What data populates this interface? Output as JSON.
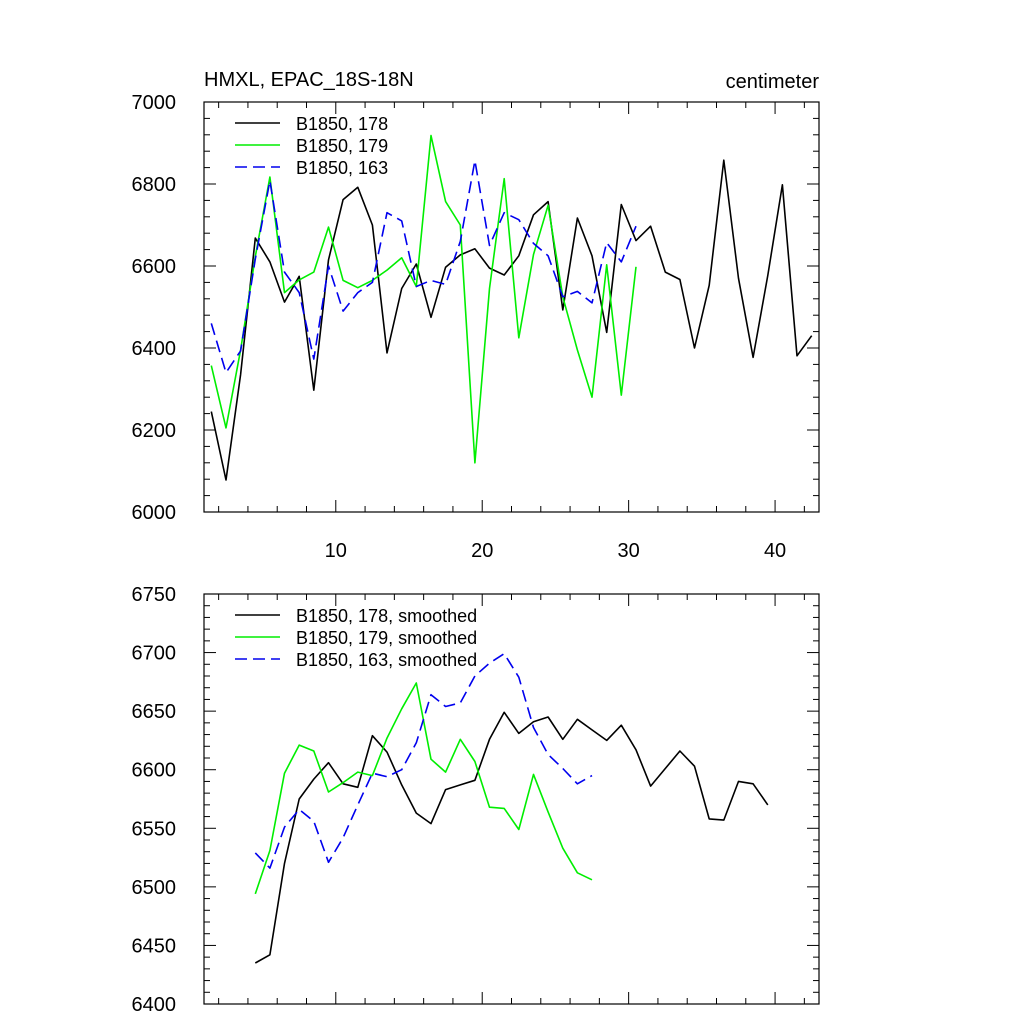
{
  "chart_data": [
    {
      "type": "line",
      "title": "HMXL, EPAC_18S-18N",
      "units": "centimeter",
      "xlabel": "",
      "ylabel": "",
      "xlim": [
        1,
        43
      ],
      "ylim": [
        6000,
        7000
      ],
      "grid": false,
      "legend_position": "top-left",
      "x_ticks": [
        10,
        20,
        30,
        40
      ],
      "y_ticks": [
        6000,
        6200,
        6400,
        6600,
        6800,
        7000
      ],
      "series": [
        {
          "name": "B1850, 178",
          "color": "#000000",
          "dash": "solid",
          "x": [
            1.5,
            2.5,
            3.5,
            4.5,
            5.5,
            6.5,
            7.5,
            8.5,
            9.5,
            10.5,
            11.5,
            12.5,
            13.5,
            14.5,
            15.5,
            16.5,
            17.5,
            18.5,
            19.5,
            20.5,
            21.5,
            22.5,
            23.5,
            24.5,
            25.5,
            26.5,
            27.5,
            28.5,
            29.5,
            30.5,
            31.5,
            32.5,
            33.5,
            34.5,
            35.5,
            36.5,
            37.5,
            38.5,
            39.5,
            40.5,
            41.5,
            42.5
          ],
          "values": [
            6245,
            6078,
            6335,
            6668,
            6610,
            6512,
            6575,
            6297,
            6615,
            6762,
            6792,
            6700,
            6388,
            6545,
            6605,
            6475,
            6597,
            6627,
            6642,
            6595,
            6578,
            6625,
            6725,
            6757,
            6493,
            6717,
            6625,
            6438,
            6750,
            6662,
            6697,
            6585,
            6567,
            6400,
            6553,
            6858,
            6570,
            6377,
            6577,
            6798,
            6381,
            6430
          ]
        },
        {
          "name": "B1850, 179",
          "color": "#00ee00",
          "dash": "solid",
          "x": [
            1.5,
            2.5,
            3.5,
            4.5,
            5.5,
            6.5,
            7.5,
            8.5,
            9.5,
            10.5,
            11.5,
            12.5,
            13.5,
            14.5,
            15.5,
            16.5,
            17.5,
            18.5,
            19.5,
            20.5,
            21.5,
            22.5,
            23.5,
            24.5,
            25.5,
            26.5,
            27.5,
            28.5,
            29.5,
            30.5
          ],
          "values": [
            6357,
            6205,
            6395,
            6623,
            6817,
            6535,
            6566,
            6585,
            6695,
            6565,
            6547,
            6565,
            6590,
            6620,
            6550,
            6918,
            6757,
            6700,
            6120,
            6545,
            6813,
            6425,
            6628,
            6748,
            6525,
            6395,
            6280,
            6603,
            6285,
            6598
          ]
        },
        {
          "name": "B1850, 163",
          "color": "#0000ee",
          "dash": "dashed",
          "x": [
            1.5,
            2.5,
            3.5,
            4.5,
            5.5,
            6.5,
            7.5,
            8.5,
            9.5,
            10.5,
            11.5,
            12.5,
            13.5,
            14.5,
            15.5,
            16.5,
            17.5,
            18.5,
            19.5,
            20.5,
            21.5,
            22.5,
            23.5,
            24.5,
            25.5,
            26.5,
            27.5,
            28.5,
            29.5,
            30.5
          ],
          "values": [
            6460,
            6340,
            6393,
            6617,
            6808,
            6585,
            6535,
            6373,
            6600,
            6490,
            6535,
            6560,
            6730,
            6710,
            6550,
            6565,
            6555,
            6660,
            6857,
            6650,
            6730,
            6713,
            6655,
            6625,
            6525,
            6538,
            6510,
            6657,
            6610,
            6697
          ]
        }
      ]
    },
    {
      "type": "line",
      "title": "",
      "xlabel": "",
      "ylabel": "",
      "xlim": [
        1,
        43
      ],
      "ylim": [
        6400,
        6750
      ],
      "grid": false,
      "legend_position": "top-left",
      "x_ticks": [
        10,
        20,
        30,
        40
      ],
      "y_ticks": [
        6400,
        6450,
        6500,
        6550,
        6600,
        6650,
        6700,
        6750
      ],
      "series": [
        {
          "name": "B1850, 178, smoothed",
          "color": "#000000",
          "dash": "solid",
          "x": [
            4.5,
            5.5,
            6.5,
            7.5,
            8.5,
            9.5,
            10.5,
            11.5,
            12.5,
            13.5,
            14.5,
            15.5,
            16.5,
            17.5,
            18.5,
            19.5,
            20.5,
            21.5,
            22.5,
            23.5,
            24.5,
            25.5,
            26.5,
            27.5,
            28.5,
            29.5,
            30.5,
            31.5,
            32.5,
            33.5,
            34.5,
            35.5,
            36.5,
            37.5,
            38.5,
            39.5
          ],
          "values": [
            6435,
            6442,
            6520,
            6575,
            6592,
            6606,
            6588,
            6585,
            6629,
            6615,
            6587,
            6563,
            6554,
            6583,
            6587,
            6591,
            6626,
            6649,
            6631,
            6641,
            6645,
            6626,
            6643,
            6634,
            6625,
            6638,
            6617,
            6586,
            6601,
            6616,
            6603,
            6558,
            6557,
            6590,
            6588,
            6570
          ]
        },
        {
          "name": "B1850, 179, smoothed",
          "color": "#00ee00",
          "dash": "solid",
          "x": [
            4.5,
            5.5,
            6.5,
            7.5,
            8.5,
            9.5,
            10.5,
            11.5,
            12.5,
            13.5,
            14.5,
            15.5,
            16.5,
            17.5,
            18.5,
            19.5,
            20.5,
            21.5,
            22.5,
            23.5,
            24.5,
            25.5,
            26.5,
            27.5
          ],
          "values": [
            6494,
            6531,
            6597,
            6621,
            6616,
            6581,
            6589,
            6598,
            6595,
            6627,
            6652,
            6674,
            6609,
            6598,
            6626,
            6607,
            6568,
            6567,
            6549,
            6596,
            6564,
            6533,
            6512,
            6506
          ]
        },
        {
          "name": "B1850, 163, smoothed",
          "color": "#0000ee",
          "dash": "dashed",
          "x": [
            4.5,
            5.5,
            6.5,
            7.5,
            8.5,
            9.5,
            10.5,
            11.5,
            12.5,
            13.5,
            14.5,
            15.5,
            16.5,
            17.5,
            18.5,
            19.5,
            20.5,
            21.5,
            22.5,
            23.5,
            24.5,
            25.5,
            26.5,
            27.5
          ],
          "values": [
            6529,
            6516,
            6551,
            6566,
            6556,
            6521,
            6542,
            6570,
            6597,
            6594,
            6600,
            6623,
            6664,
            6654,
            6657,
            6680,
            6691,
            6699,
            6679,
            6636,
            6613,
            6601,
            6588,
            6595
          ]
        }
      ]
    }
  ]
}
